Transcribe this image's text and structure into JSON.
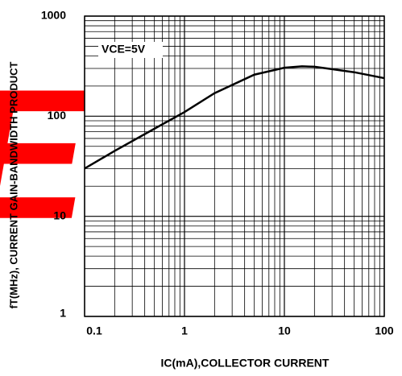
{
  "chart_data": {
    "type": "line",
    "watermark": "ECU",
    "annotation": "VCE=5V",
    "x_label": "IC(mA),COLLECTOR CURRENT",
    "y_label": "fT(MHz), CURRENT GAIN-BANDWIDTH PRODUCT",
    "x": [
      0.1,
      0.2,
      0.5,
      1,
      2,
      5,
      10,
      15,
      20,
      30,
      50,
      100
    ],
    "values": [
      30,
      45,
      75,
      110,
      170,
      260,
      305,
      315,
      312,
      295,
      275,
      240
    ],
    "color": "#000000",
    "xlim": [
      0.1,
      100
    ],
    "ylim": [
      1,
      1000
    ],
    "xticks": [
      0.1,
      1,
      10,
      100
    ],
    "yticks": [
      1,
      10,
      100,
      1000
    ],
    "log_x": true,
    "log_y": true,
    "grid": true,
    "minor_grid": true
  }
}
